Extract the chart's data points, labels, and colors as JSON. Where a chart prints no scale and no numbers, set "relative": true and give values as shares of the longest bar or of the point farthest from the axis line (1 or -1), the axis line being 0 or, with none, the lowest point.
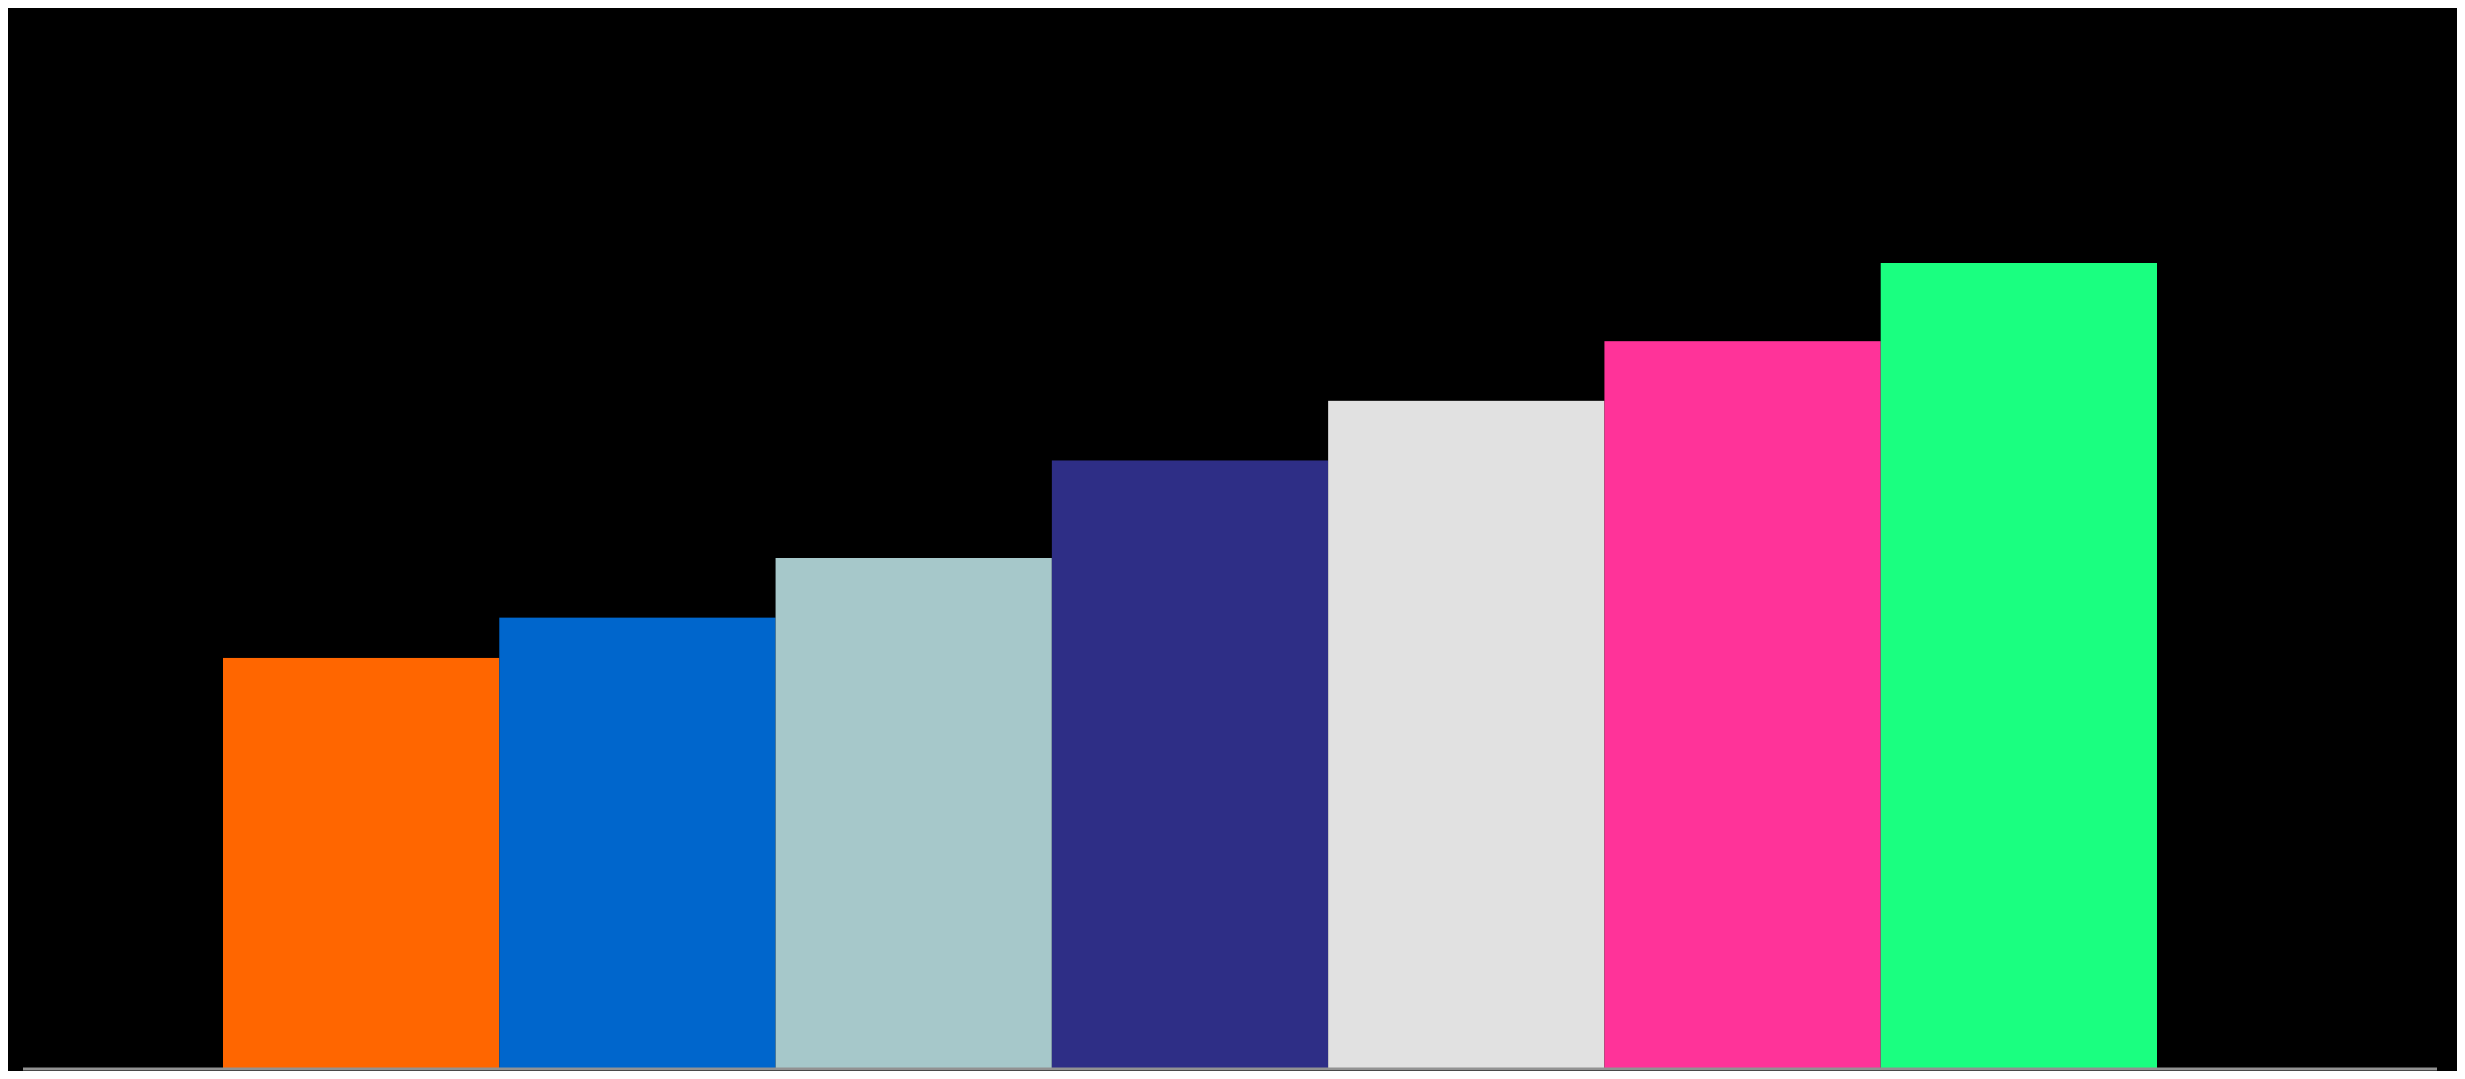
{
  "chart_data": {
    "type": "bar",
    "relative": true,
    "categories": [
      null,
      null,
      null,
      null,
      null,
      null,
      null
    ],
    "values": [
      0.51,
      0.56,
      0.634,
      0.755,
      0.829,
      0.903,
      1
    ],
    "colors": [
      "#ff6600",
      "#0066cc",
      "#a6c8ca",
      "#2e2e86",
      "#e1e1e1",
      "#ff3399",
      "#1aff80"
    ]
  }
}
